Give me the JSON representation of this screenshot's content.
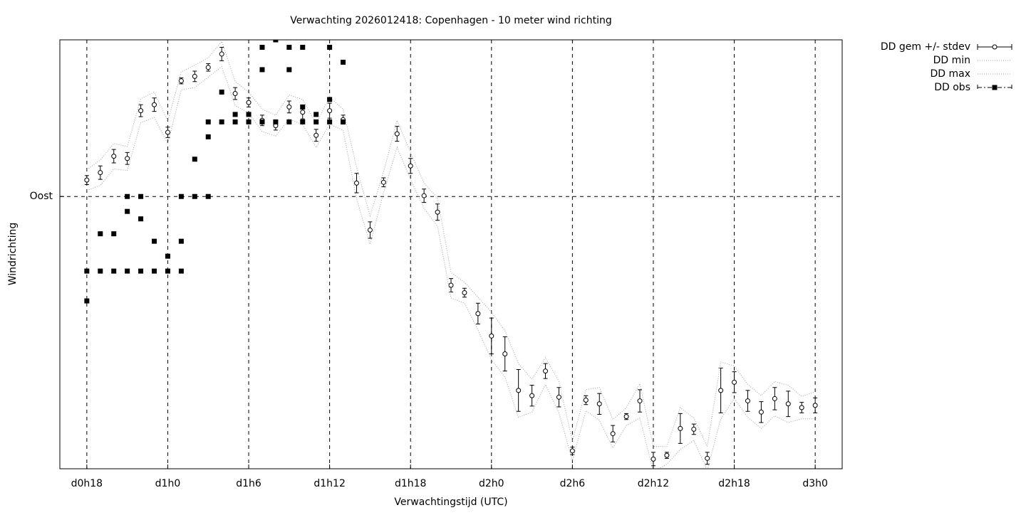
{
  "chart_data": {
    "type": "errorbar-line",
    "title": "Verwachting 2026012418: Copenhagen - 10 meter wind richting",
    "x_label": "Verwachtingstijd (UTC)",
    "y_label": "Windrichting",
    "xlim": [
      16,
      74
    ],
    "ylim": [
      -275,
      300
    ],
    "xticks": [
      {
        "value": 18,
        "label": "d0h18"
      },
      {
        "value": 24,
        "label": "d1h0"
      },
      {
        "value": 30,
        "label": "d1h6"
      },
      {
        "value": 36,
        "label": "d1h12"
      },
      {
        "value": 42,
        "label": "d1h18"
      },
      {
        "value": 48,
        "label": "d2h0"
      },
      {
        "value": 54,
        "label": "d2h6"
      },
      {
        "value": 60,
        "label": "d2h12"
      },
      {
        "value": 66,
        "label": "d2h18"
      },
      {
        "value": 72,
        "label": "d3h0"
      }
    ],
    "yticks": [
      {
        "value": 90,
        "label": "Oost"
      }
    ],
    "grid": true,
    "legend": "outside-top-right",
    "x": [
      18,
      19,
      20,
      21,
      22,
      23,
      24,
      25,
      26,
      27,
      28,
      29,
      30,
      31,
      32,
      33,
      34,
      35,
      36,
      37,
      38,
      39,
      40,
      41,
      42,
      43,
      44,
      45,
      46,
      47,
      48,
      49,
      50,
      51,
      52,
      53,
      54,
      55,
      56,
      57,
      58,
      59,
      60,
      61,
      62,
      63,
      64,
      65,
      66,
      67,
      68,
      69,
      70,
      71,
      72
    ],
    "series": [
      {
        "name": "DD gem +/- stdev",
        "color": "#000000",
        "style": "errorbars",
        "values": [
          112,
          122,
          144,
          141,
          205,
          213,
          176,
          245,
          251,
          263,
          281,
          228,
          216,
          192,
          185,
          210,
          203,
          172,
          205,
          193,
          108,
          45,
          109,
          174,
          131,
          91,
          69,
          -29,
          -39,
          -67,
          -97,
          -121,
          -170,
          -177,
          -144,
          -179,
          -251,
          -183,
          -188,
          -228,
          -205,
          -184,
          -262,
          -257,
          -221,
          -222,
          -261,
          -170,
          -159,
          -184,
          -199,
          -181,
          -188,
          -193,
          -190
        ],
        "error": [
          6,
          9,
          9,
          8,
          8,
          9,
          7,
          4,
          7,
          5,
          9,
          8,
          6,
          7,
          6,
          8,
          9,
          8,
          10,
          6,
          13,
          11,
          6,
          10,
          10,
          9,
          11,
          9,
          6,
          14,
          24,
          23,
          28,
          14,
          10,
          13,
          5,
          6,
          14,
          11,
          4,
          15,
          9,
          4,
          20,
          7,
          8,
          30,
          14,
          14,
          14,
          15,
          17,
          7,
          10
        ]
      },
      {
        "name": "DD min",
        "color": "#a0a0a0",
        "style": "dotted",
        "values": [
          98,
          105,
          127,
          125,
          189,
          196,
          161,
          233,
          236,
          250,
          264,
          212,
          202,
          177,
          171,
          194,
          186,
          156,
          187,
          179,
          87,
          26,
          95,
          156,
          113,
          74,
          50,
          -46,
          -53,
          -89,
          -129,
          -152,
          -206,
          -199,
          -162,
          -200,
          -264,
          -197,
          -210,
          -247,
          -217,
          -207,
          -279,
          -269,
          -249,
          -237,
          -277,
          -208,
          -181,
          -206,
          -221,
          -204,
          -213,
          -208,
          -208
        ]
      },
      {
        "name": "DD max",
        "color": "#a0a0a0",
        "style": "dotted",
        "values": [
          126,
          139,
          161,
          157,
          221,
          230,
          191,
          257,
          266,
          276,
          298,
          244,
          230,
          207,
          199,
          226,
          220,
          188,
          223,
          207,
          129,
          64,
          123,
          192,
          149,
          108,
          88,
          -12,
          -25,
          -45,
          -65,
          -90,
          -134,
          -155,
          -126,
          -158,
          -238,
          -169,
          -166,
          -209,
          -193,
          -161,
          -245,
          -245,
          -193,
          -207,
          -245,
          -132,
          -137,
          -162,
          -177,
          -158,
          -163,
          -178,
          -172
        ]
      },
      {
        "name": "DD obs",
        "color": "#000000",
        "style": "squares",
        "x": [
          18,
          18,
          19,
          19,
          20,
          20,
          21,
          21,
          21,
          22,
          22,
          22,
          23,
          23,
          24,
          24,
          25,
          25,
          25,
          26,
          26,
          27,
          27,
          27,
          28,
          28,
          29,
          29,
          30,
          30,
          31,
          31,
          31,
          32,
          32,
          33,
          33,
          33,
          34,
          34,
          34,
          35,
          35,
          36,
          36,
          36,
          37,
          37
        ],
        "values": [
          -10,
          -50,
          40,
          -10,
          40,
          -10,
          90,
          70,
          -10,
          90,
          60,
          -10,
          30,
          -10,
          10,
          -10,
          90,
          30,
          -10,
          140,
          90,
          190,
          170,
          90,
          230,
          190,
          200,
          190,
          200,
          190,
          290,
          260,
          190,
          300,
          190,
          290,
          260,
          190,
          290,
          210,
          190,
          200,
          190,
          290,
          220,
          190,
          270,
          190
        ]
      }
    ]
  }
}
